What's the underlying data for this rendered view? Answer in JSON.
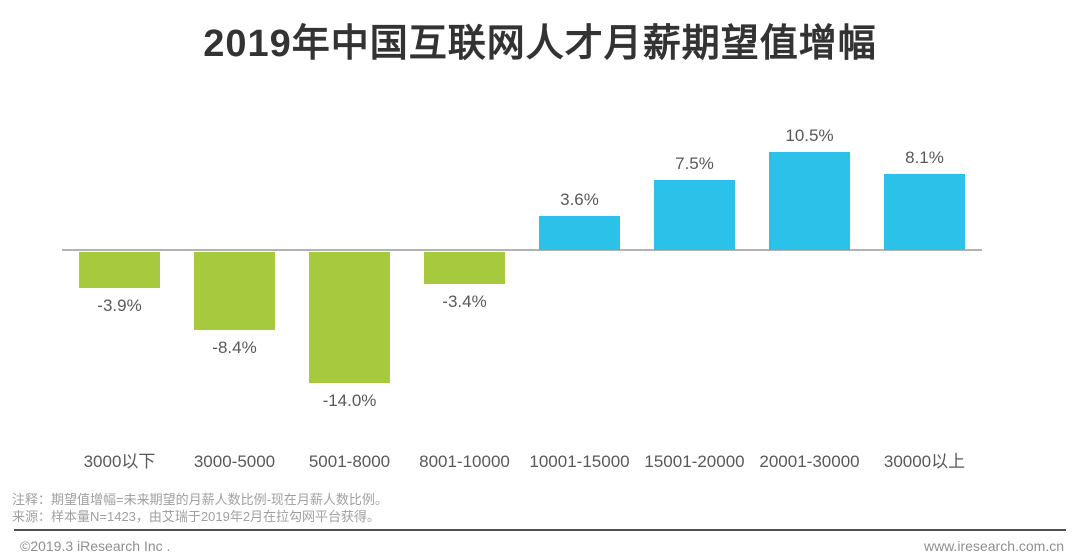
{
  "title": "2019年中国互联网人才月薪期望值增幅",
  "chart_data": {
    "type": "bar",
    "title": "2019年中国互联网人才月薪期望值增幅",
    "categories": [
      "3000以下",
      "3000-5000",
      "5001-8000",
      "8001-10000",
      "10001-15000",
      "15001-20000",
      "20001-30000",
      "30000以上"
    ],
    "values": [
      -3.9,
      -8.4,
      -14.0,
      -3.4,
      3.6,
      7.5,
      10.5,
      8.1
    ],
    "value_labels": [
      "-3.9%",
      "-8.4%",
      "-14.0%",
      "-3.4%",
      "3.6%",
      "7.5%",
      "10.5%",
      "8.1%"
    ],
    "unit": "%",
    "baseline": 0,
    "grid": false,
    "legend": false,
    "colors": {
      "positive": "#2cc1e8",
      "negative": "#a7c93d",
      "axis": "#b3b3b3",
      "label": "#595959"
    }
  },
  "notes": {
    "line1": "注释：期望值增幅=未来期望的月薪人数比例-现在月薪人数比例。",
    "line2": "来源：样本量N=1423，由艾瑞于2019年2月在拉勾网平台获得。"
  },
  "footer": {
    "copyright": "©2019.3 iResearch Inc .",
    "website": "www.iresearch.com.cn"
  }
}
